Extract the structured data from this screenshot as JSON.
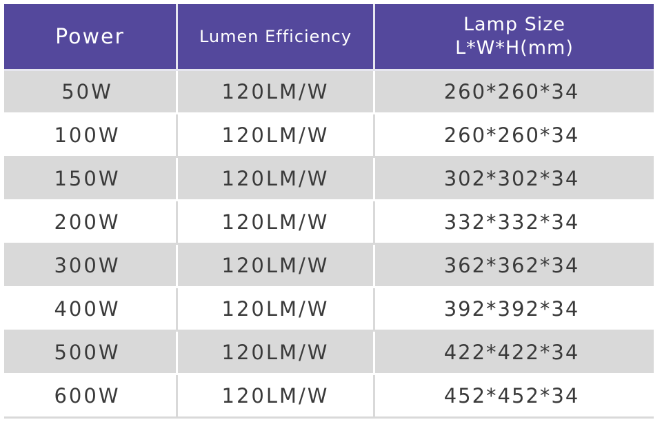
{
  "headers": {
    "power": "Power",
    "lumen": "Lumen Efficiency",
    "size_line1": "Lamp Size",
    "size_line2": "L*W*H(mm)"
  },
  "rows": [
    {
      "power": "50W",
      "lumen": "120LM/W",
      "size": "260*260*34"
    },
    {
      "power": "100W",
      "lumen": "120LM/W",
      "size": "260*260*34"
    },
    {
      "power": "150W",
      "lumen": "120LM/W",
      "size": "302*302*34"
    },
    {
      "power": "200W",
      "lumen": "120LM/W",
      "size": "332*332*34"
    },
    {
      "power": "300W",
      "lumen": "120LM/W",
      "size": "362*362*34"
    },
    {
      "power": "400W",
      "lumen": "120LM/W",
      "size": "392*392*34"
    },
    {
      "power": "500W",
      "lumen": "120LM/W",
      "size": "422*422*34"
    },
    {
      "power": "600W",
      "lumen": "120LM/W",
      "size": "452*452*34"
    }
  ],
  "colors": {
    "header_bg": "#54489c",
    "header_text": "#ffffff",
    "row_shaded": "#d9d9d9",
    "row_plain": "#ffffff",
    "cell_text": "#3a3a3a"
  }
}
